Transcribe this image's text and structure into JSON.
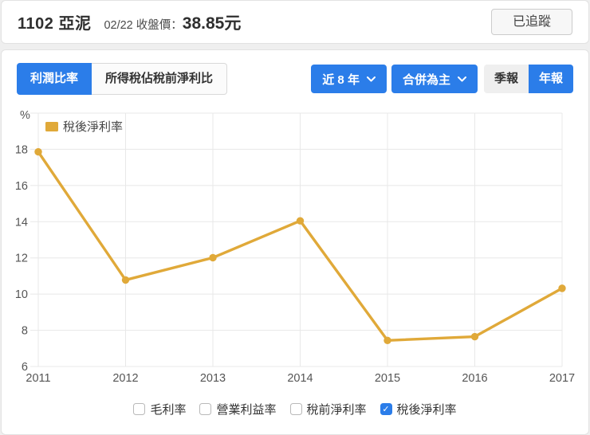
{
  "header": {
    "title": "1102 亞泥",
    "price_label": "02/22 收盤價：",
    "price_value": "38.85元",
    "follow_button": "已追蹤"
  },
  "tabs": {
    "profit_ratio": "利潤比率",
    "income_tax_ratio": "所得稅佔稅前淨利比"
  },
  "controls": {
    "range_dropdown": "近 8 年",
    "consolidation_dropdown": "合併為主",
    "quarterly": "季報",
    "yearly": "年報"
  },
  "chart_data": {
    "type": "line",
    "unit_label": "%",
    "legend": [
      {
        "name": "稅後淨利率",
        "color": "#e0a939"
      }
    ],
    "x": [
      2011,
      2012,
      2013,
      2014,
      2015,
      2016,
      2017
    ],
    "series": [
      {
        "name": "稅後淨利率",
        "color": "#e0a939",
        "values": [
          17.86,
          10.78,
          12.01,
          14.05,
          7.44,
          7.65,
          10.32
        ]
      }
    ],
    "y_ticks": [
      6,
      8,
      10,
      12,
      14,
      16,
      18
    ],
    "ylim": [
      6,
      20
    ],
    "grid": true,
    "legend_position": "top-left"
  },
  "filters": {
    "items": [
      {
        "label": "毛利率",
        "checked": false
      },
      {
        "label": "營業利益率",
        "checked": false
      },
      {
        "label": "稅前淨利率",
        "checked": false
      },
      {
        "label": "稅後淨利率",
        "checked": true
      }
    ]
  },
  "colors": {
    "accent_blue": "#2b7de9",
    "series_gold": "#e0a939",
    "grid_line": "#e8e8e8",
    "axis_text": "#555555"
  }
}
